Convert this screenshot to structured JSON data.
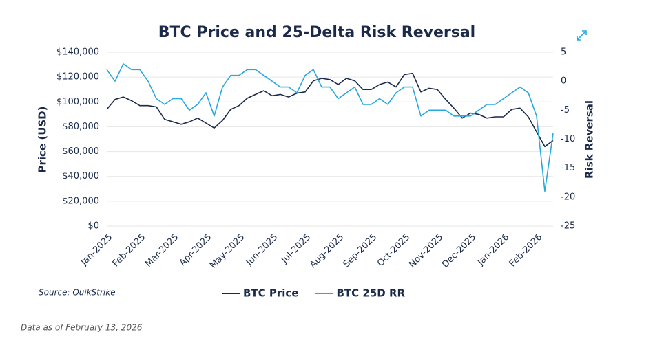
{
  "chart_data": {
    "type": "line",
    "title": "BTC Price and 25-Delta Risk Reversal",
    "y_label": "Price (USD)",
    "y2_label": "Risk Reversal",
    "source": "Source: QuikStrike",
    "footnote": "Data as of February 13, 2026",
    "categories": [
      "Jan-2025",
      null,
      null,
      null,
      "Feb-2025",
      null,
      null,
      null,
      "Mar-2025",
      null,
      null,
      null,
      "Apr-2025",
      null,
      null,
      null,
      "May-2025",
      null,
      null,
      null,
      "Jun-2025",
      null,
      null,
      null,
      "Jul-2025",
      null,
      null,
      null,
      "Aug-2025",
      null,
      null,
      null,
      "Sep-2025",
      null,
      null,
      null,
      "Oct-2025",
      null,
      null,
      null,
      "Nov-2025",
      null,
      null,
      null,
      "Dec-2025",
      null,
      null,
      null,
      "Jan-2026",
      null,
      null,
      null,
      "Feb-2026",
      null,
      null
    ],
    "series": [
      {
        "name": "BTC Price",
        "color": "#1b2a4a",
        "axis": "y",
        "values": [
          94000,
          102000,
          104000,
          101000,
          97000,
          97000,
          96000,
          86000,
          84000,
          82000,
          84000,
          87000,
          83000,
          79000,
          85000,
          94000,
          97000,
          103000,
          106000,
          109000,
          105000,
          106000,
          104000,
          107000,
          108000,
          117000,
          119000,
          118000,
          114000,
          119000,
          117000,
          110000,
          110000,
          114000,
          116000,
          112000,
          122000,
          123000,
          108000,
          111000,
          110000,
          102000,
          95000,
          87000,
          91000,
          90000,
          87000,
          88000,
          88000,
          94000,
          95000,
          88000,
          76000,
          64000,
          69000
        ]
      },
      {
        "name": "BTC 25D RR",
        "color": "#29a8e0",
        "axis": "y2",
        "values": [
          2,
          0,
          3,
          2,
          2,
          0,
          -3,
          -4,
          -3,
          -3,
          -5,
          -4,
          -2,
          -6,
          -1,
          1,
          1,
          2,
          2,
          1,
          0,
          -1,
          -1,
          -2,
          1,
          2,
          -1,
          -1,
          -3,
          -2,
          -1,
          -4,
          -4,
          -3,
          -4,
          -2,
          -1,
          -1,
          -6,
          -5,
          -5,
          -5,
          -6,
          -6,
          -6,
          -5,
          -4,
          -4,
          -3,
          -2,
          -1,
          -2,
          -6,
          -19,
          -9
        ]
      }
    ],
    "ylim": [
      0,
      140000
    ],
    "yticks": [
      {
        "value": 0,
        "label": "$0"
      },
      {
        "value": 20000,
        "label": "$20,000"
      },
      {
        "value": 40000,
        "label": "$40,000"
      },
      {
        "value": 60000,
        "label": "$60,000"
      },
      {
        "value": 80000,
        "label": "$80,000"
      },
      {
        "value": 100000,
        "label": "$100,000"
      },
      {
        "value": 120000,
        "label": "$120,000"
      },
      {
        "value": 140000,
        "label": "$140,000"
      }
    ],
    "y2lim": [
      -25,
      5
    ],
    "y2ticks": [
      -25,
      -20,
      -15,
      -10,
      -5,
      0,
      5
    ],
    "grid": true
  }
}
